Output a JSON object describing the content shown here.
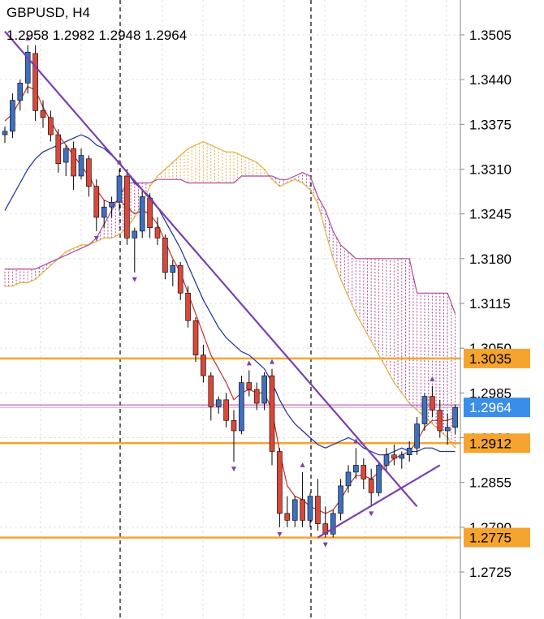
{
  "header": {
    "title": "GBPUSD, H4",
    "ohlc": "1.2958 1.2982 1.2948 1.2964"
  },
  "colors": {
    "bull": "#3f6fbf",
    "bear": "#d9483a",
    "hline": "#f5a430",
    "trend": "#7b3fb0",
    "kijun": "#1a2e9e",
    "tenkan": "#c0332a",
    "span_a": "#e0b040",
    "span_b": "#b0459c",
    "current_tag": "#3a8ee6"
  },
  "chart_data": {
    "type": "candlestick",
    "symbol": "GBPUSD",
    "timeframe": "H4",
    "ylim": [
      1.268,
      1.354
    ],
    "price_ticks": [
      "1.3505",
      "1.3440",
      "1.3375",
      "1.3310",
      "1.3245",
      "1.3180",
      "1.3115",
      "1.3050",
      "1.2985",
      "1.2920",
      "1.2855",
      "1.2790",
      "1.2725"
    ],
    "levels": [
      {
        "label": "1.3035",
        "value": 1.3035,
        "kind": "support-resistance"
      },
      {
        "label": "1.2912",
        "value": 1.2912,
        "kind": "support-resistance"
      },
      {
        "label": "1.2775",
        "value": 1.2775,
        "kind": "support-resistance"
      },
      {
        "label": "1.2964",
        "value": 1.2964,
        "kind": "current-price"
      }
    ],
    "candles": [
      [
        1.336,
        1.3372,
        1.3348,
        1.3365
      ],
      [
        1.3365,
        1.342,
        1.3355,
        1.341
      ],
      [
        1.341,
        1.344,
        1.3395,
        1.3435
      ],
      [
        1.3435,
        1.349,
        1.342,
        1.348
      ],
      [
        1.3478,
        1.349,
        1.338,
        1.3395
      ],
      [
        1.3395,
        1.341,
        1.337,
        1.3385
      ],
      [
        1.3385,
        1.3395,
        1.335,
        1.336
      ],
      [
        1.336,
        1.3368,
        1.3305,
        1.3318
      ],
      [
        1.332,
        1.3345,
        1.33,
        1.334
      ],
      [
        1.334,
        1.335,
        1.328,
        1.33
      ],
      [
        1.33,
        1.334,
        1.3295,
        1.333
      ],
      [
        1.3325,
        1.333,
        1.327,
        1.3285
      ],
      [
        1.3285,
        1.3295,
        1.322,
        1.324
      ],
      [
        1.324,
        1.3265,
        1.3225,
        1.3255
      ],
      [
        1.3255,
        1.327,
        1.324,
        1.3262
      ],
      [
        1.3262,
        1.331,
        1.325,
        1.33
      ],
      [
        1.33,
        1.331,
        1.32,
        1.321
      ],
      [
        1.321,
        1.3225,
        1.316,
        1.322
      ],
      [
        1.322,
        1.328,
        1.321,
        1.327
      ],
      [
        1.3268,
        1.3275,
        1.321,
        1.3225
      ],
      [
        1.3225,
        1.324,
        1.32,
        1.321
      ],
      [
        1.321,
        1.3215,
        1.315,
        1.316
      ],
      [
        1.316,
        1.3178,
        1.314,
        1.317
      ],
      [
        1.317,
        1.3175,
        1.312,
        1.313
      ],
      [
        1.313,
        1.314,
        1.308,
        1.309
      ],
      [
        1.309,
        1.3095,
        1.303,
        1.304
      ],
      [
        1.304,
        1.3055,
        1.3,
        1.301
      ],
      [
        1.301,
        1.3015,
        1.2945,
        1.2965
      ],
      [
        1.2965,
        1.298,
        1.2955,
        1.2975
      ],
      [
        1.2975,
        1.2985,
        1.2935,
        1.2945
      ],
      [
        1.2945,
        1.296,
        1.2885,
        1.293
      ],
      [
        1.293,
        1.301,
        1.2925,
        1.3
      ],
      [
        1.3,
        1.3018,
        1.298,
        1.299
      ],
      [
        1.299,
        1.3,
        1.296,
        1.297
      ],
      [
        1.297,
        1.3015,
        1.296,
        1.301
      ],
      [
        1.301,
        1.302,
        1.288,
        1.29
      ],
      [
        1.29,
        1.2905,
        1.279,
        1.281
      ],
      [
        1.281,
        1.2835,
        1.279,
        1.28
      ],
      [
        1.28,
        1.2835,
        1.279,
        1.283
      ],
      [
        1.283,
        1.287,
        1.279,
        1.28
      ],
      [
        1.28,
        1.284,
        1.279,
        1.2835
      ],
      [
        1.2835,
        1.286,
        1.2785,
        1.2795
      ],
      [
        1.2795,
        1.282,
        1.2775,
        1.278
      ],
      [
        1.278,
        1.2815,
        1.2775,
        1.281
      ],
      [
        1.281,
        1.286,
        1.28,
        1.285
      ],
      [
        1.285,
        1.288,
        1.284,
        1.287
      ],
      [
        1.287,
        1.2905,
        1.286,
        1.288
      ],
      [
        1.288,
        1.289,
        1.2845,
        1.286
      ],
      [
        1.286,
        1.2875,
        1.282,
        1.284
      ],
      [
        1.284,
        1.2885,
        1.2835,
        1.288
      ],
      [
        1.288,
        1.2905,
        1.287,
        1.2895
      ],
      [
        1.2895,
        1.291,
        1.288,
        1.289
      ],
      [
        1.289,
        1.29,
        1.2875,
        1.2895
      ],
      [
        1.2895,
        1.2915,
        1.2885,
        1.2905
      ],
      [
        1.2905,
        1.295,
        1.2895,
        1.294
      ],
      [
        1.294,
        1.2985,
        1.293,
        1.298
      ],
      [
        1.298,
        1.2995,
        1.295,
        1.296
      ],
      [
        1.296,
        1.2975,
        1.292,
        1.293
      ],
      [
        1.293,
        1.2955,
        1.291,
        1.2935
      ],
      [
        1.2935,
        1.2968,
        1.2925,
        1.2964
      ]
    ],
    "tenkan": [
      1.338,
      1.339,
      1.341,
      1.343,
      1.3425,
      1.34,
      1.338,
      1.336,
      1.3345,
      1.333,
      1.3315,
      1.33,
      1.328,
      1.3265,
      1.326,
      1.3265,
      1.3255,
      1.3245,
      1.325,
      1.3245,
      1.323,
      1.3205,
      1.318,
      1.316,
      1.313,
      1.31,
      1.307,
      1.304,
      1.302,
      1.3,
      1.2975,
      1.2985,
      1.299,
      1.2985,
      1.2985,
      1.296,
      1.29,
      1.285,
      1.2835,
      1.283,
      1.282,
      1.2815,
      1.281,
      1.2815,
      1.283,
      1.285,
      1.2865,
      1.2865,
      1.286,
      1.287,
      1.288,
      1.289,
      1.2895,
      1.29,
      1.2915,
      1.2935,
      1.2945,
      1.2945,
      1.2945,
      1.295
    ],
    "kijun": [
      1.325,
      1.327,
      1.329,
      1.331,
      1.3325,
      1.3335,
      1.334,
      1.3345,
      1.335,
      1.3355,
      1.336,
      1.3355,
      1.3345,
      1.334,
      1.333,
      1.332,
      1.3305,
      1.329,
      1.328,
      1.327,
      1.3255,
      1.3235,
      1.3215,
      1.3195,
      1.317,
      1.3145,
      1.312,
      1.31,
      1.308,
      1.3065,
      1.3055,
      1.3045,
      1.304,
      1.303,
      1.302,
      1.3,
      1.2975,
      1.2955,
      1.294,
      1.293,
      1.292,
      1.291,
      1.2905,
      1.291,
      1.2915,
      1.292,
      1.2915,
      1.2905,
      1.29,
      1.2895,
      1.2895,
      1.29,
      1.2905,
      1.29,
      1.29,
      1.2905,
      1.2905,
      1.29,
      1.29,
      1.29
    ],
    "span_a": [
      1.314,
      1.314,
      1.3145,
      1.3145,
      1.315,
      1.316,
      1.317,
      1.318,
      1.319,
      1.3195,
      1.32,
      1.32,
      1.3205,
      1.321,
      1.321,
      1.3215,
      1.3225,
      1.324,
      1.326,
      1.3285,
      1.33,
      1.331,
      1.332,
      1.333,
      1.334,
      1.3345,
      1.335,
      1.3345,
      1.334,
      1.3335,
      1.3335,
      1.333,
      1.3325,
      1.332,
      1.331,
      1.3295,
      1.3285,
      1.329,
      1.3295,
      1.329,
      1.328,
      1.326,
      1.322,
      1.318,
      1.315,
      1.3125,
      1.31,
      1.308,
      1.306,
      1.304,
      1.302,
      1.3,
      1.2985,
      1.297,
      1.296,
      1.295,
      1.294,
      1.293,
      1.292,
      1.2905
    ],
    "span_b": [
      1.3165,
      1.3165,
      1.3165,
      1.3165,
      1.3165,
      1.317,
      1.3175,
      1.318,
      1.3185,
      1.319,
      1.3195,
      1.32,
      1.321,
      1.323,
      1.325,
      1.327,
      1.329,
      1.329,
      1.329,
      1.329,
      1.3295,
      1.3295,
      1.3295,
      1.3295,
      1.329,
      1.329,
      1.329,
      1.329,
      1.329,
      1.329,
      1.329,
      1.33,
      1.33,
      1.33,
      1.33,
      1.33,
      1.3295,
      1.3295,
      1.33,
      1.3305,
      1.33,
      1.327,
      1.325,
      1.322,
      1.32,
      1.319,
      1.318,
      1.318,
      1.318,
      1.318,
      1.318,
      1.318,
      1.318,
      1.318,
      1.313,
      1.313,
      1.313,
      1.313,
      1.313,
      1.31
    ],
    "trendlines": [
      {
        "name": "downtrend",
        "from": [
          0,
          1.351
        ],
        "to": [
          54,
          1.282
        ]
      },
      {
        "name": "uptrend",
        "from": [
          41,
          1.2775
        ],
        "to": [
          57,
          1.288
        ]
      }
    ],
    "vertical_markers": [
      15,
      40
    ]
  }
}
